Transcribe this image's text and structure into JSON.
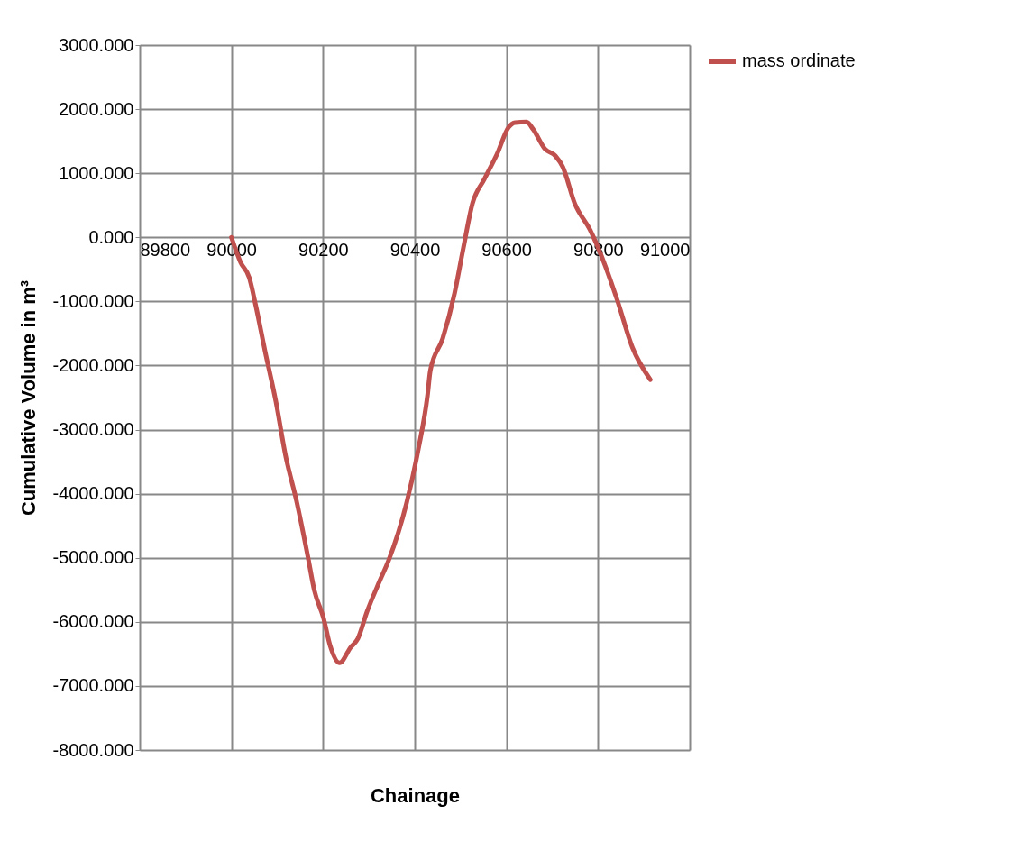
{
  "chart_data": {
    "type": "line",
    "xlabel": "Chainage",
    "ylabel": "Cumulative Volume in m³",
    "x": [
      90000,
      90020,
      90039,
      90053,
      90073,
      90097,
      90118,
      90142,
      90166,
      90181,
      90201,
      90215,
      90236,
      90260,
      90276,
      90296,
      90323,
      90343,
      90382,
      90408,
      90428,
      90434,
      90461,
      90487,
      90506,
      90526,
      90552,
      90579,
      90605,
      90619,
      90644,
      90658,
      90684,
      90707,
      90723,
      90749,
      90783,
      90816,
      90841,
      90875,
      90914
    ],
    "series": [
      {
        "name": "mass ordinate",
        "color": "#c0504d",
        "values": [
          0,
          -390,
          -630,
          -1060,
          -1760,
          -2560,
          -3400,
          -4110,
          -4950,
          -5510,
          -5940,
          -6360,
          -6640,
          -6400,
          -6260,
          -5840,
          -5370,
          -5040,
          -4150,
          -3300,
          -2460,
          -2080,
          -1580,
          -870,
          -170,
          530,
          910,
          1290,
          1720,
          1790,
          1800,
          1690,
          1380,
          1270,
          1100,
          530,
          110,
          -450,
          -960,
          -1720,
          -2220
        ]
      }
    ],
    "xlim": [
      89800,
      91000
    ],
    "xticks": [
      89800,
      90000,
      90200,
      90400,
      90600,
      90800,
      91000
    ],
    "ylim": [
      -8000,
      3000
    ],
    "yticks": [
      {
        "value": 3000,
        "label": "3000.000"
      },
      {
        "value": 2000,
        "label": "2000.000"
      },
      {
        "value": 1000,
        "label": "1000.000"
      },
      {
        "value": 0,
        "label": "0.000"
      },
      {
        "value": -1000,
        "label": "-1000.000"
      },
      {
        "value": -2000,
        "label": "-2000.000"
      },
      {
        "value": -3000,
        "label": "-3000.000"
      },
      {
        "value": -4000,
        "label": "-4000.000"
      },
      {
        "value": -5000,
        "label": "-5000.000"
      },
      {
        "value": -6000,
        "label": "-6000.000"
      },
      {
        "value": -7000,
        "label": "-7000.000"
      },
      {
        "value": -8000,
        "label": "-8000.000"
      }
    ],
    "grid": true,
    "legend": "right",
    "marker": "none",
    "line_style": "solid"
  }
}
